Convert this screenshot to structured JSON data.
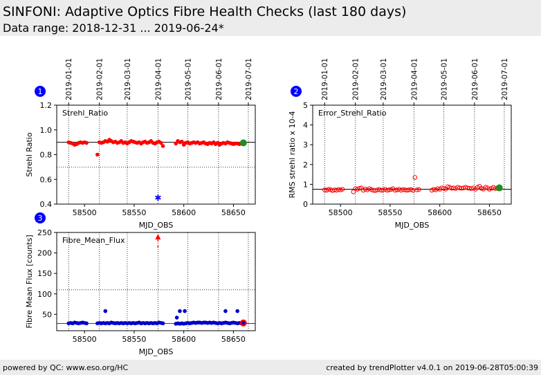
{
  "header": {
    "title": "SINFONI: Adaptive Optics Fibre Health Checks (last 180 days)",
    "subtitle": "Data range: 2018-12-31 ... 2019-06-24*"
  },
  "footer": {
    "left": "powered by QC: www.eso.org/HC",
    "right": "created by trendPlotter v4.0.1 on 2019-06-28T05:00:39"
  },
  "colors": {
    "data": "#ff0000",
    "flux": "#0000cc",
    "latest": "#228b22",
    "badge": "#0000ff"
  },
  "date_ticks": {
    "labels": [
      "2019-01-01",
      "2019-02-01",
      "2019-03-01",
      "2019-04-01",
      "2019-05-01",
      "2019-06-01",
      "2019-07-01"
    ],
    "mjd": [
      58484,
      58515,
      58543,
      58574,
      58604,
      58635,
      58665
    ]
  },
  "chart_data": [
    {
      "type": "scatter",
      "badge": "1",
      "title": "Strehl_Ratio",
      "xlabel": "MJD_OBS",
      "ylabel": "Strehl Ratio",
      "xlim": [
        58472,
        58672
      ],
      "ylim": [
        0.4,
        1.2
      ],
      "xticks": [
        58500,
        58550,
        58600,
        58650
      ],
      "yticks": [
        0.4,
        0.6,
        0.8,
        1.0,
        1.2
      ],
      "ytick_labels": [
        "0.4",
        "0.6",
        "0.8",
        "1.0",
        "1.2"
      ],
      "reference_lines": [
        0.9,
        0.7
      ],
      "series": [
        {
          "marker": "dot",
          "color": "#ff0000",
          "x": [
            58484,
            58486,
            58488,
            58490,
            58492,
            58494,
            58496,
            58498,
            58500,
            58502,
            58513,
            58515,
            58517,
            58519,
            58521,
            58523,
            58525,
            58527,
            58529,
            58531,
            58533,
            58535,
            58537,
            58539,
            58541,
            58543,
            58545,
            58547,
            58549,
            58551,
            58553,
            58555,
            58557,
            58559,
            58561,
            58563,
            58565,
            58567,
            58569,
            58571,
            58573,
            58575,
            58577,
            58579,
            58592,
            58594,
            58596,
            58598,
            58600,
            58602,
            58604,
            58606,
            58608,
            58610,
            58612,
            58614,
            58616,
            58618,
            58620,
            58622,
            58624,
            58626,
            58628,
            58630,
            58632,
            58634,
            58636,
            58638,
            58640,
            58642,
            58644,
            58646,
            58648,
            58650,
            58652,
            58654,
            58656,
            58658
          ],
          "y": [
            0.9,
            0.895,
            0.89,
            0.88,
            0.885,
            0.895,
            0.9,
            0.895,
            0.9,
            0.895,
            0.8,
            0.9,
            0.895,
            0.9,
            0.91,
            0.905,
            0.92,
            0.91,
            0.9,
            0.905,
            0.895,
            0.9,
            0.91,
            0.895,
            0.9,
            0.89,
            0.9,
            0.91,
            0.905,
            0.9,
            0.895,
            0.9,
            0.89,
            0.9,
            0.905,
            0.895,
            0.9,
            0.91,
            0.895,
            0.89,
            0.9,
            0.905,
            0.895,
            0.87,
            0.89,
            0.91,
            0.9,
            0.905,
            0.88,
            0.895,
            0.9,
            0.89,
            0.895,
            0.9,
            0.895,
            0.9,
            0.89,
            0.895,
            0.9,
            0.89,
            0.885,
            0.895,
            0.89,
            0.9,
            0.885,
            0.895,
            0.88,
            0.89,
            0.895,
            0.89,
            0.9,
            0.895,
            0.89,
            0.885,
            0.89,
            0.89,
            0.885,
            0.89
          ]
        },
        {
          "marker": "star",
          "color": "#0000ff",
          "x": [
            58574
          ],
          "y": [
            0.45
          ]
        }
      ],
      "latest": {
        "x": 58660,
        "y": 0.895
      }
    },
    {
      "type": "scatter",
      "badge": "2",
      "title": "Error_Strehl_Ratio",
      "xlabel": "MJD_OBS",
      "ylabel": "RMS strehl ratio x 10-4",
      "xlim": [
        58472,
        58672
      ],
      "ylim": [
        0,
        5
      ],
      "xticks": [
        58500,
        58550,
        58600,
        58650
      ],
      "yticks": [
        0,
        1,
        2,
        3,
        4,
        5
      ],
      "ytick_labels": [
        "0",
        "1",
        "2",
        "3",
        "4",
        "5"
      ],
      "reference_lines": [
        0.75
      ],
      "series": [
        {
          "marker": "ring",
          "color": "#ff0000",
          "x": [
            58484,
            58486,
            58488,
            58490,
            58492,
            58494,
            58496,
            58498,
            58500,
            58502,
            58513,
            58515,
            58517,
            58519,
            58521,
            58523,
            58525,
            58527,
            58529,
            58531,
            58533,
            58535,
            58537,
            58539,
            58541,
            58543,
            58545,
            58547,
            58549,
            58551,
            58553,
            58555,
            58557,
            58559,
            58561,
            58563,
            58565,
            58567,
            58569,
            58571,
            58573,
            58575,
            58577,
            58579,
            58592,
            58594,
            58596,
            58598,
            58600,
            58602,
            58604,
            58606,
            58608,
            58610,
            58612,
            58614,
            58616,
            58618,
            58620,
            58622,
            58624,
            58626,
            58628,
            58630,
            58632,
            58634,
            58636,
            58638,
            58640,
            58642,
            58644,
            58646,
            58648,
            58650,
            58652,
            58654,
            58656,
            58658
          ],
          "y": [
            0.72,
            0.7,
            0.75,
            0.73,
            0.68,
            0.72,
            0.7,
            0.74,
            0.72,
            0.75,
            0.62,
            0.78,
            0.75,
            0.8,
            0.82,
            0.7,
            0.76,
            0.72,
            0.78,
            0.74,
            0.7,
            0.68,
            0.72,
            0.74,
            0.7,
            0.72,
            0.75,
            0.7,
            0.72,
            0.74,
            0.78,
            0.7,
            0.72,
            0.75,
            0.7,
            0.74,
            0.72,
            0.7,
            0.72,
            0.74,
            0.7,
            1.35,
            0.72,
            0.74,
            0.7,
            0.75,
            0.72,
            0.78,
            0.75,
            0.82,
            0.8,
            0.76,
            0.88,
            0.85,
            0.8,
            0.82,
            0.78,
            0.85,
            0.82,
            0.8,
            0.82,
            0.85,
            0.82,
            0.8,
            0.78,
            0.82,
            0.75,
            0.85,
            0.9,
            0.8,
            0.76,
            0.85,
            0.82,
            0.75,
            0.8,
            0.85,
            0.78,
            0.82
          ]
        }
      ],
      "latest": {
        "x": 58660,
        "y": 0.82
      }
    },
    {
      "type": "scatter",
      "badge": "3",
      "title": "Fibre_Mean_Flux",
      "xlabel": "MJD_OBS",
      "ylabel": "Fibre Mean Flux [counts]",
      "xlim": [
        58472,
        58672
      ],
      "ylim": [
        10,
        250
      ],
      "xticks": [
        58500,
        58550,
        58600,
        58650
      ],
      "yticks": [
        50,
        100,
        150,
        200,
        250
      ],
      "ytick_labels": [
        "50",
        "100",
        "150",
        "200",
        "250"
      ],
      "reference_lines": [
        110,
        28
      ],
      "series": [
        {
          "marker": "dot",
          "color": "#0000cc",
          "x": [
            58484,
            58486,
            58488,
            58490,
            58492,
            58494,
            58496,
            58498,
            58500,
            58502,
            58513,
            58515,
            58517,
            58519,
            58521,
            58523,
            58525,
            58527,
            58529,
            58531,
            58533,
            58535,
            58537,
            58539,
            58541,
            58543,
            58545,
            58547,
            58549,
            58551,
            58553,
            58555,
            58557,
            58559,
            58561,
            58563,
            58565,
            58567,
            58569,
            58571,
            58573,
            58575,
            58577,
            58579,
            58592,
            58594,
            58596,
            58598,
            58600,
            58602,
            58604,
            58606,
            58608,
            58610,
            58612,
            58614,
            58616,
            58618,
            58620,
            58622,
            58624,
            58626,
            58628,
            58630,
            58632,
            58634,
            58636,
            58638,
            58640,
            58642,
            58644,
            58646,
            58648,
            58650,
            58652,
            58654,
            58656,
            58658,
            58521,
            58593,
            58596,
            58601,
            58642,
            58654
          ],
          "y": [
            28,
            29,
            28,
            30,
            29,
            28,
            29,
            30,
            29,
            28,
            28,
            29,
            28,
            29,
            28,
            29,
            28,
            30,
            29,
            28,
            29,
            28,
            29,
            28,
            29,
            28,
            29,
            28,
            29,
            28,
            29,
            30,
            28,
            29,
            28,
            29,
            28,
            29,
            28,
            29,
            28,
            30,
            29,
            28,
            27,
            28,
            27,
            28,
            27,
            28,
            29,
            28,
            29,
            30,
            29,
            30,
            30,
            29,
            30,
            30,
            29,
            30,
            29,
            30,
            29,
            28,
            29,
            28,
            29,
            30,
            29,
            28,
            29,
            30,
            29,
            28,
            29,
            28,
            58,
            42,
            58,
            58,
            58,
            58
          ]
        },
        {
          "marker": "triangle-up",
          "color": "#ff0000",
          "x": [
            58574
          ],
          "y": [
            238
          ]
        },
        {
          "marker": "tick",
          "color": "#ff0000",
          "x": [
            58574,
            58574
          ],
          "y": [
            230,
            215
          ]
        }
      ],
      "latest": {
        "x": 58660,
        "y": 29
      }
    }
  ]
}
